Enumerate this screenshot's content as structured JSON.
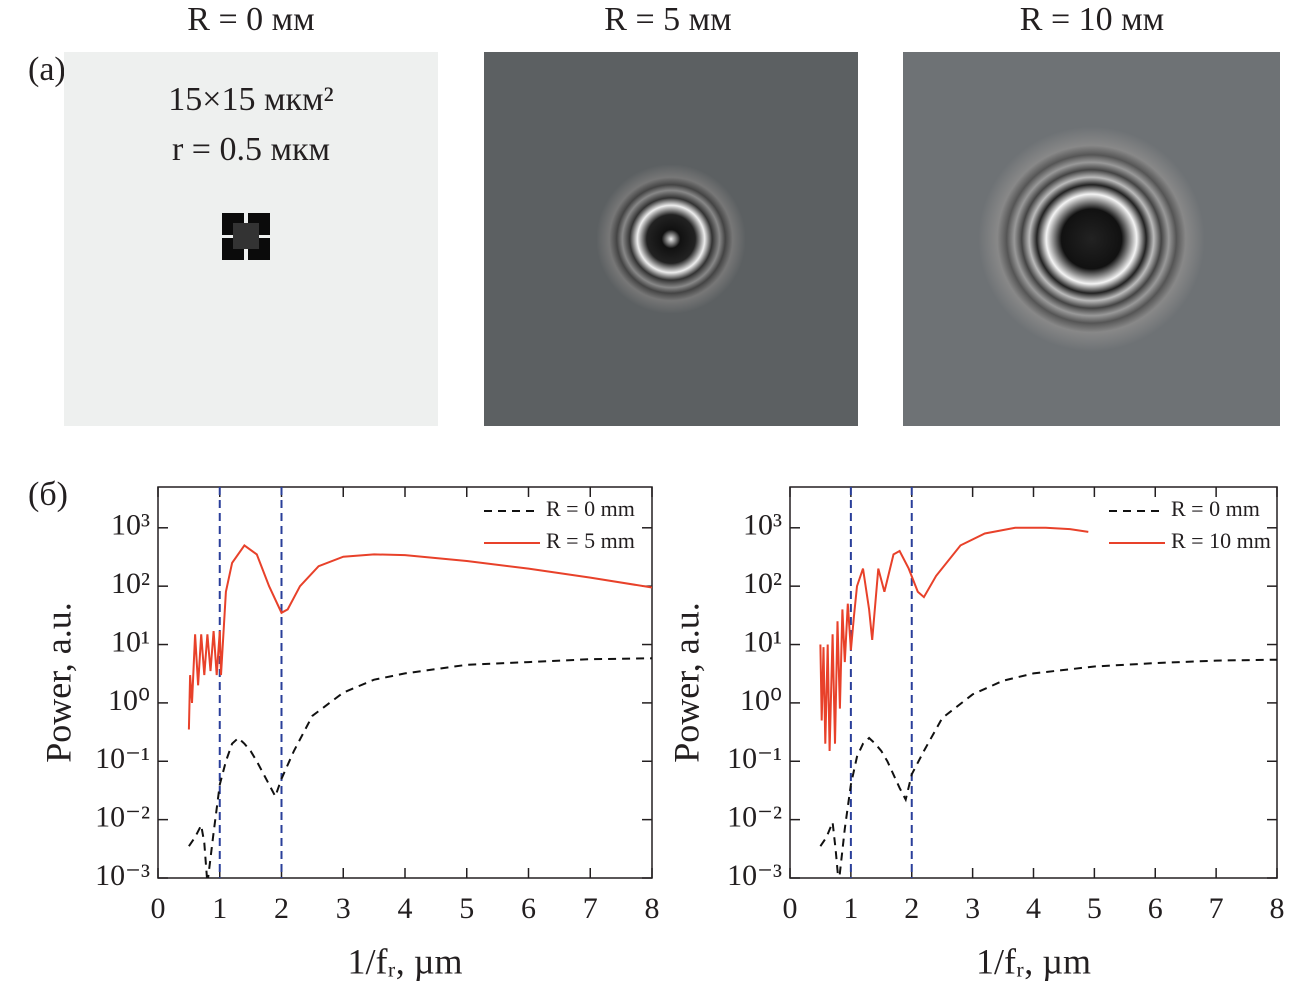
{
  "panel_labels": [
    "(a)",
    "(б)"
  ],
  "images": [
    {
      "title": "R = 0 мм",
      "annotations": [
        "15×15 мкм²",
        "r = 0.5 мкм"
      ]
    },
    {
      "title": "R = 5 мм"
    },
    {
      "title": "R = 10 мм"
    }
  ],
  "chart_data": [
    {
      "type": "line",
      "y_label": "Power, a.u.",
      "x_label": "1/fᵣ, µm",
      "log_y": true,
      "legend": "upper right",
      "xlim": [
        0,
        8
      ],
      "xticks": [
        0,
        1,
        2,
        3,
        4,
        5,
        6,
        7,
        8
      ],
      "ylim": [
        0.001,
        5000
      ],
      "yticks": [
        {
          "value": 0.001,
          "label": "10⁻³"
        },
        {
          "value": 0.01,
          "label": "10⁻²"
        },
        {
          "value": 0.1,
          "label": "10⁻¹"
        },
        {
          "value": 1,
          "label": "10⁰"
        },
        {
          "value": 10,
          "label": "10¹"
        },
        {
          "value": 100,
          "label": "10²"
        },
        {
          "value": 1000,
          "label": "10³"
        }
      ],
      "vlines": [
        1,
        2
      ],
      "vline_color": "#2a3f9a",
      "series": [
        {
          "name": "R = 0 mm",
          "color": "#111111",
          "dash": true,
          "x": [
            0.5,
            0.6,
            0.7,
            0.75,
            0.8,
            0.9,
            1.0,
            1.1,
            1.2,
            1.3,
            1.4,
            1.5,
            1.6,
            1.8,
            1.9,
            2.0,
            2.2,
            2.5,
            3,
            3.5,
            4,
            5,
            6,
            7,
            8
          ],
          "values": [
            0.0035,
            0.005,
            0.008,
            0.004,
            0.0008,
            0.006,
            0.04,
            0.1,
            0.2,
            0.25,
            0.2,
            0.15,
            0.1,
            0.04,
            0.025,
            0.05,
            0.15,
            0.6,
            1.5,
            2.5,
            3.2,
            4.5,
            5,
            5.6,
            5.8
          ]
        },
        {
          "name": "R = 5 mm",
          "color": "#e8412a",
          "dash": false,
          "x": [
            0.5,
            0.52,
            0.55,
            0.6,
            0.65,
            0.7,
            0.75,
            0.8,
            0.85,
            0.9,
            0.95,
            1.0,
            1.02,
            1.1,
            1.2,
            1.4,
            1.6,
            1.8,
            2.0,
            2.1,
            2.3,
            2.6,
            3,
            3.5,
            4,
            5,
            6,
            7,
            8
          ],
          "values": [
            0.35,
            3,
            1,
            15,
            2,
            15,
            3,
            15,
            3.5,
            17,
            3,
            17,
            3,
            80,
            250,
            500,
            350,
            100,
            35,
            40,
            100,
            220,
            320,
            350,
            340,
            270,
            200,
            140,
            95
          ]
        }
      ]
    },
    {
      "type": "line",
      "y_label": "Power, a.u.",
      "x_label": "1/fᵣ, µm",
      "log_y": true,
      "legend": "upper right",
      "xlim": [
        0,
        8
      ],
      "xticks": [
        0,
        1,
        2,
        3,
        4,
        5,
        6,
        7,
        8
      ],
      "ylim": [
        0.001,
        5000
      ],
      "yticks": [
        {
          "value": 0.001,
          "label": "10⁻³"
        },
        {
          "value": 0.01,
          "label": "10⁻²"
        },
        {
          "value": 0.1,
          "label": "10⁻¹"
        },
        {
          "value": 1,
          "label": "10⁰"
        },
        {
          "value": 10,
          "label": "10¹"
        },
        {
          "value": 100,
          "label": "10²"
        },
        {
          "value": 1000,
          "label": "10³"
        }
      ],
      "vlines": [
        1,
        2
      ],
      "vline_color": "#2a3f9a",
      "series": [
        {
          "name": "R = 0 mm",
          "color": "#111111",
          "dash": true,
          "x": [
            0.5,
            0.6,
            0.7,
            0.75,
            0.8,
            0.9,
            1.0,
            1.1,
            1.2,
            1.3,
            1.4,
            1.5,
            1.6,
            1.8,
            1.9,
            2.0,
            2.2,
            2.5,
            3,
            3.5,
            4,
            5,
            6,
            7,
            8
          ],
          "values": [
            0.0035,
            0.005,
            0.009,
            0.003,
            0.0008,
            0.007,
            0.04,
            0.12,
            0.2,
            0.25,
            0.2,
            0.15,
            0.1,
            0.035,
            0.022,
            0.06,
            0.15,
            0.55,
            1.4,
            2.4,
            3.2,
            4.2,
            4.8,
            5.3,
            5.5
          ]
        },
        {
          "name": "R = 10 mm",
          "color": "#e8412a",
          "dash": false,
          "x": [
            0.5,
            0.52,
            0.55,
            0.58,
            0.62,
            0.65,
            0.7,
            0.74,
            0.78,
            0.82,
            0.86,
            0.9,
            0.95,
            1.0,
            1.05,
            1.1,
            1.2,
            1.3,
            1.35,
            1.45,
            1.55,
            1.7,
            1.8,
            1.95,
            2.1,
            2.2,
            2.4,
            2.8,
            3.2,
            3.7,
            4.2,
            4.6,
            4.9
          ],
          "values": [
            10,
            0.5,
            9,
            0.2,
            10,
            0.15,
            15,
            0.2,
            25,
            0.8,
            40,
            5,
            50,
            8,
            30,
            100,
            200,
            40,
            12,
            200,
            80,
            350,
            400,
            200,
            80,
            65,
            150,
            500,
            800,
            1000,
            1000,
            950,
            850
          ]
        }
      ]
    }
  ]
}
